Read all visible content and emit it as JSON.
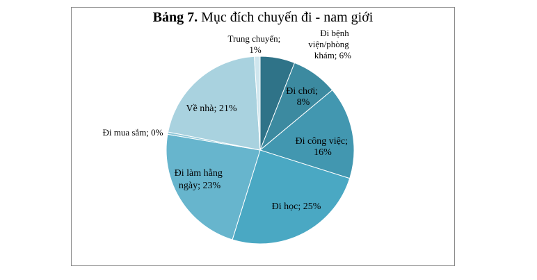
{
  "title": {
    "prefix": "Bảng 7.",
    "text": "Mục đích chuyến đi - nam giới"
  },
  "chart_data": {
    "type": "pie",
    "title": "Bảng 7. Mục đích chuyến đi - nam giới",
    "slices": [
      {
        "label": "Đi bệnh viện/phòng khám",
        "value": 6,
        "display": "Đi bệnh viện/phòng khám; 6%",
        "color": "#2f7388"
      },
      {
        "label": "Đi chơi",
        "value": 8,
        "display": "Đi chơi; 8%",
        "color": "#3c8aa0"
      },
      {
        "label": "Đi công việc",
        "value": 16,
        "display": "Đi công việc; 16%",
        "color": "#4297b0"
      },
      {
        "label": "Đi học",
        "value": 25,
        "display": "Đi học; 25%",
        "color": "#4aa8c3"
      },
      {
        "label": "Đi làm hằng ngày",
        "value": 23,
        "display": "Đi làm hằng ngày; 23%",
        "color": "#67b5cd"
      },
      {
        "label": "Đi mua sắm",
        "value": 0.4,
        "display": "Đi mua sắm; 0%",
        "color": "#8fc7d8"
      },
      {
        "label": "Về nhà",
        "value": 21,
        "display": "Về nhà; 21%",
        "color": "#a9d2df"
      },
      {
        "label": "Trung chuyển",
        "value": 1,
        "display": "Trung chuyển; 1%",
        "color": "#cfe6ee"
      }
    ],
    "legend": "none",
    "data_labels": "category; percent"
  }
}
